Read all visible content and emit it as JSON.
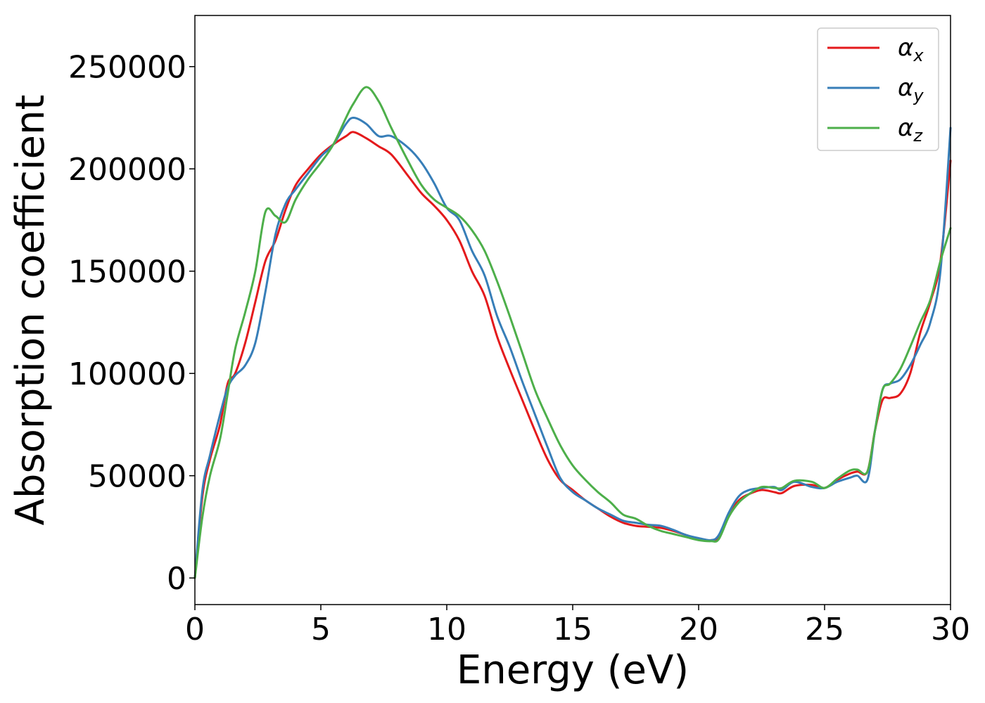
{
  "chart_data": {
    "type": "line",
    "xlabel": "Energy (eV)",
    "ylabel": "Absorption coefficient",
    "xlim": [
      0,
      30
    ],
    "ylim": [
      -13000,
      275000
    ],
    "xticks": [
      0,
      5,
      10,
      15,
      20,
      25,
      30
    ],
    "yticks": [
      0,
      50000,
      100000,
      150000,
      200000,
      250000
    ],
    "grid": false,
    "legend_position": "top-right",
    "series": [
      {
        "name_base": "α",
        "name_sub": "x",
        "color": "#e41a1c",
        "x": [
          0,
          0.3,
          0.6,
          1.0,
          1.3,
          1.6,
          2.0,
          2.4,
          2.8,
          3.2,
          3.6,
          4.0,
          4.5,
          5.0,
          5.5,
          6.0,
          6.3,
          6.8,
          7.3,
          7.8,
          8.5,
          9.0,
          9.5,
          10.0,
          10.5,
          11.0,
          11.5,
          12.0,
          12.5,
          13.0,
          13.5,
          14.0,
          14.5,
          15.0,
          15.5,
          16.0,
          16.5,
          17.0,
          17.5,
          18.0,
          18.5,
          19.0,
          19.5,
          20.0,
          20.5,
          20.8,
          21.2,
          21.6,
          22.0,
          22.5,
          23.0,
          23.3,
          23.8,
          24.5,
          25.0,
          25.5,
          26.0,
          26.3,
          26.7,
          27.0,
          27.3,
          27.6,
          28.0,
          28.4,
          28.8,
          29.2,
          29.6,
          30.0
        ],
        "values": [
          0,
          40000,
          58000,
          75000,
          95000,
          100000,
          115000,
          135000,
          155000,
          165000,
          180000,
          192000,
          200000,
          207000,
          212000,
          216000,
          218000,
          215000,
          211000,
          207000,
          196000,
          188000,
          182000,
          175000,
          165000,
          150000,
          138000,
          118000,
          102000,
          87000,
          72000,
          58000,
          48000,
          43000,
          38000,
          34000,
          30000,
          27000,
          25500,
          25000,
          24500,
          23000,
          21000,
          19000,
          18500,
          20000,
          31000,
          38000,
          41000,
          43000,
          42000,
          41500,
          45000,
          45500,
          44000,
          48000,
          51000,
          52000,
          52000,
          72000,
          87000,
          88000,
          90000,
          100000,
          120000,
          135000,
          155000,
          204000
        ]
      },
      {
        "name_base": "α",
        "name_sub": "y",
        "color": "#377eb8",
        "x": [
          0,
          0.3,
          0.6,
          1.0,
          1.3,
          1.6,
          2.0,
          2.4,
          2.8,
          3.2,
          3.6,
          4.0,
          4.5,
          5.0,
          5.5,
          6.0,
          6.3,
          6.8,
          7.3,
          7.8,
          8.5,
          9.0,
          9.5,
          10.0,
          10.5,
          11.0,
          11.5,
          12.0,
          12.5,
          13.0,
          13.5,
          14.0,
          14.5,
          15.0,
          15.5,
          16.0,
          16.5,
          17.0,
          17.5,
          18.0,
          18.5,
          19.0,
          19.5,
          20.0,
          20.5,
          20.8,
          21.2,
          21.6,
          22.0,
          22.5,
          23.0,
          23.3,
          23.8,
          24.5,
          25.0,
          25.5,
          26.0,
          26.3,
          26.7,
          27.0,
          27.3,
          27.6,
          28.0,
          28.4,
          28.8,
          29.2,
          29.6,
          30.0
        ],
        "values": [
          0,
          43000,
          60000,
          80000,
          93000,
          99000,
          104000,
          115000,
          140000,
          168000,
          183000,
          190000,
          198000,
          206000,
          212000,
          222000,
          225000,
          222000,
          216000,
          216000,
          210000,
          203000,
          193000,
          181000,
          175000,
          160000,
          148000,
          128000,
          113000,
          96000,
          80000,
          64000,
          49000,
          42000,
          38000,
          34000,
          31000,
          28000,
          27000,
          26000,
          25500,
          23500,
          21000,
          19500,
          18500,
          21000,
          32000,
          40000,
          43000,
          44000,
          44500,
          43000,
          47000,
          44500,
          44000,
          47000,
          49000,
          50000,
          48000,
          72000,
          92000,
          95000,
          97000,
          104000,
          114000,
          125000,
          150000,
          220000
        ]
      },
      {
        "name_base": "α",
        "name_sub": "z",
        "color": "#4daf4a",
        "x": [
          0,
          0.3,
          0.6,
          1.0,
          1.3,
          1.6,
          2.0,
          2.4,
          2.8,
          3.2,
          3.6,
          4.0,
          4.5,
          5.0,
          5.5,
          6.0,
          6.3,
          6.8,
          7.3,
          7.8,
          8.5,
          9.0,
          9.5,
          10.0,
          10.5,
          11.0,
          11.5,
          12.0,
          12.5,
          13.0,
          13.5,
          14.0,
          14.5,
          15.0,
          15.5,
          16.0,
          16.5,
          17.0,
          17.5,
          18.0,
          18.5,
          19.0,
          19.5,
          20.0,
          20.5,
          20.8,
          21.2,
          21.6,
          22.0,
          22.5,
          23.0,
          23.3,
          23.8,
          24.5,
          25.0,
          25.5,
          26.0,
          26.3,
          26.7,
          27.0,
          27.3,
          27.6,
          28.0,
          28.4,
          28.8,
          29.2,
          29.6,
          30.0
        ],
        "values": [
          0,
          30000,
          50000,
          68000,
          90000,
          112000,
          130000,
          150000,
          179000,
          177000,
          174000,
          185000,
          195000,
          203000,
          212000,
          225000,
          232000,
          240000,
          233000,
          220000,
          203000,
          192000,
          185000,
          181000,
          177000,
          170000,
          160000,
          145000,
          128000,
          110000,
          92000,
          78000,
          65000,
          55000,
          48000,
          42000,
          37000,
          31000,
          29000,
          25500,
          23000,
          21500,
          20000,
          18500,
          18000,
          19000,
          30000,
          37000,
          41000,
          44500,
          44000,
          44000,
          47500,
          47000,
          44000,
          48500,
          52500,
          53000,
          52000,
          72000,
          92000,
          95000,
          102000,
          113000,
          125000,
          136000,
          155000,
          171000
        ]
      }
    ]
  }
}
